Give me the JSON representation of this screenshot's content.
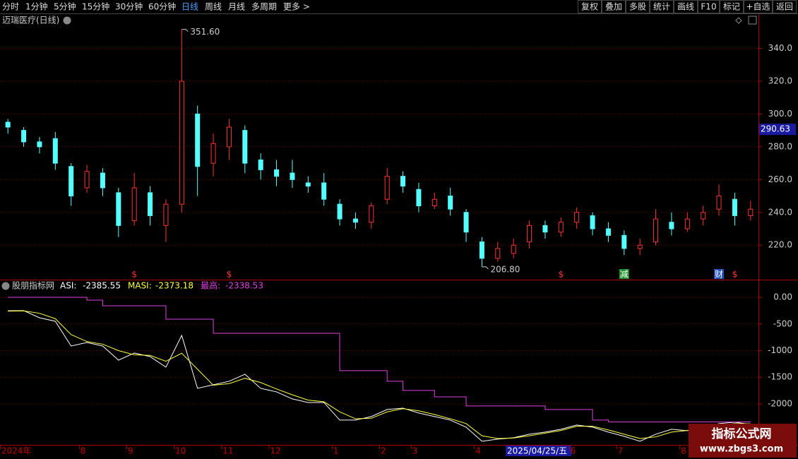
{
  "toolbar": {
    "left": [
      "分时",
      "1分钟",
      "5分钟",
      "15分钟",
      "30分钟",
      "60分钟",
      "日线",
      "周线",
      "月线",
      "多周期",
      "更多 >"
    ],
    "active_index": 6,
    "right": [
      "复权",
      "叠加",
      "多股",
      "统计",
      "画线",
      "F10",
      "标记",
      "+自选",
      "返回"
    ]
  },
  "watermark": {
    "title": "指标公式网",
    "url": "www.zbgs3.com"
  },
  "chart_data": [
    {
      "type": "candlestick",
      "title": "迈瑞医疗(日线)",
      "categories": [
        "2024年",
        null,
        null,
        null,
        null,
        "8",
        null,
        null,
        "9",
        null,
        null,
        "10",
        null,
        null,
        "11",
        null,
        null,
        "12",
        null,
        null,
        null,
        "1",
        null,
        null,
        "2",
        null,
        "3",
        null,
        null,
        null,
        "4",
        null,
        "2025/04/25/五",
        null,
        null,
        null,
        "6",
        null,
        null,
        "7",
        null,
        null,
        null,
        "8",
        null,
        null,
        null,
        null
      ],
      "ohlc": [
        [
          295,
          292,
          297,
          288
        ],
        [
          290,
          283,
          292,
          280
        ],
        [
          283,
          280,
          286,
          276
        ],
        [
          285,
          270,
          289,
          266
        ],
        [
          268,
          250,
          270,
          244
        ],
        [
          255,
          265,
          269,
          252
        ],
        [
          264,
          255,
          267,
          250
        ],
        [
          252,
          232,
          255,
          225
        ],
        [
          235,
          255,
          264,
          232
        ],
        [
          252,
          238,
          256,
          232
        ],
        [
          232,
          245,
          248,
          222
        ],
        [
          245,
          320,
          351.6,
          240
        ],
        [
          300,
          268,
          305,
          250
        ],
        [
          270,
          282,
          288,
          262
        ],
        [
          280,
          292,
          297,
          272
        ],
        [
          290,
          270,
          293,
          264
        ],
        [
          272,
          266,
          276,
          260
        ],
        [
          266,
          262,
          272,
          256
        ],
        [
          264,
          260,
          272,
          255
        ],
        [
          258,
          256,
          262,
          252
        ],
        [
          258,
          248,
          264,
          244
        ],
        [
          245,
          236,
          248,
          232
        ],
        [
          236,
          234,
          240,
          230
        ],
        [
          234,
          244,
          246,
          230
        ],
        [
          248,
          262,
          267,
          245
        ],
        [
          262,
          256,
          265,
          252
        ],
        [
          254,
          244,
          258,
          240
        ],
        [
          244,
          248,
          252,
          242
        ],
        [
          250,
          242,
          255,
          238
        ],
        [
          240,
          228,
          242,
          222
        ],
        [
          222,
          212,
          225,
          206.8
        ],
        [
          212,
          218,
          222,
          210
        ],
        [
          215,
          220,
          224,
          212
        ],
        [
          222,
          232,
          235,
          218
        ],
        [
          232,
          228,
          235,
          224
        ],
        [
          228,
          234,
          237,
          225
        ],
        [
          234,
          240,
          243,
          230
        ],
        [
          238,
          230,
          240,
          226
        ],
        [
          230,
          226,
          234,
          222
        ],
        [
          226,
          218,
          229,
          214
        ],
        [
          218,
          220,
          224,
          214
        ],
        [
          222,
          236,
          242,
          220
        ],
        [
          234,
          230,
          240,
          226
        ],
        [
          230,
          236,
          240,
          228
        ],
        [
          236,
          240,
          244,
          232
        ],
        [
          242,
          250,
          257,
          238
        ],
        [
          248,
          238,
          252,
          232
        ],
        [
          238,
          242,
          247,
          235
        ]
      ],
      "up_color": "#ff3232",
      "down_color": "#54ffff",
      "ylim": [
        199,
        354
      ],
      "yticks": [
        {
          "value": 220,
          "label": "220.0"
        },
        {
          "value": 240,
          "label": "240.0"
        },
        {
          "value": 260,
          "label": "260.0"
        },
        {
          "value": 280,
          "label": "280.0"
        },
        {
          "value": 300,
          "label": "300.0"
        },
        {
          "value": 320,
          "label": "320.0"
        },
        {
          "value": 340,
          "label": "340.0"
        }
      ],
      "grid": true,
      "annotations": [
        {
          "index": 11,
          "value": 351.6,
          "label": "351.60"
        },
        {
          "index": 30,
          "value": 206.8,
          "label": "206.80"
        }
      ],
      "cursor": {
        "index": 32,
        "price": 290.63
      },
      "events": [
        {
          "index": 8,
          "label": "$",
          "color": "#ff3232"
        },
        {
          "index": 14,
          "label": "$",
          "color": "#ff3232"
        },
        {
          "index": 35,
          "label": "$",
          "color": "#ff3232"
        },
        {
          "index": 39,
          "label": "减",
          "color": "#1f8f2f"
        },
        {
          "index": 45,
          "label": "财",
          "color": "#2050c0"
        },
        {
          "index": 46,
          "label": "$",
          "color": "#ff3232"
        }
      ]
    },
    {
      "type": "line",
      "title": "股朋指标网",
      "series": [
        {
          "name": "ASI:",
          "color": "#ffffff",
          "values": [
            -252,
            -250,
            -384,
            -450,
            -914,
            -848,
            -914,
            -1179,
            -1046,
            -1113,
            -1311,
            -715,
            -1709,
            -1642,
            -1576,
            -1444,
            -1709,
            -1775,
            -1907,
            -1974,
            -1974,
            -2305,
            -2305,
            -2238,
            -2106,
            -2080,
            -2172,
            -2238,
            -2305,
            -2437,
            -2702,
            -2662,
            -2636,
            -2570,
            -2530,
            -2477,
            -2397,
            -2437,
            -2530,
            -2609,
            -2702,
            -2570,
            -2477,
            -2503,
            -2437,
            -2371,
            -2344,
            -2385.55
          ]
        },
        {
          "name": "MASI:",
          "color": "#ffff40",
          "values": [
            -260,
            -255,
            -300,
            -400,
            -700,
            -830,
            -880,
            -1000,
            -1080,
            -1090,
            -1200,
            -1050,
            -1350,
            -1650,
            -1620,
            -1520,
            -1600,
            -1720,
            -1830,
            -1930,
            -1960,
            -2150,
            -2280,
            -2270,
            -2150,
            -2090,
            -2130,
            -2200,
            -2280,
            -2370,
            -2600,
            -2650,
            -2640,
            -2600,
            -2550,
            -2500,
            -2420,
            -2420,
            -2490,
            -2570,
            -2650,
            -2620,
            -2530,
            -2500,
            -2460,
            -2400,
            -2370,
            -2373.18
          ]
        },
        {
          "name": "最高:",
          "color": "#e040e0",
          "step": true,
          "values": [
            0,
            0,
            0,
            0,
            0,
            -53,
            -159,
            -159,
            -159,
            -159,
            -411,
            -411,
            -411,
            -675,
            -675,
            -675,
            -675,
            -675,
            -675,
            -675,
            -675,
            -1377,
            -1377,
            -1377,
            -1576,
            -1748,
            -1748,
            -1868,
            -1868,
            -2040,
            -2040,
            -2040,
            -2040,
            -2040,
            -2106,
            -2106,
            -2106,
            -2305,
            -2338.53,
            -2338.53,
            -2338.53,
            -2338.53,
            -2338.53,
            -2338.53,
            -2338.53,
            -2338.53,
            -2338.53,
            -2338.53
          ]
        }
      ],
      "ylim": [
        -2770,
        120
      ],
      "yticks": [
        {
          "value": 0,
          "label": "0.00"
        },
        -500,
        -1000,
        -1500,
        -2000
      ]
    }
  ]
}
